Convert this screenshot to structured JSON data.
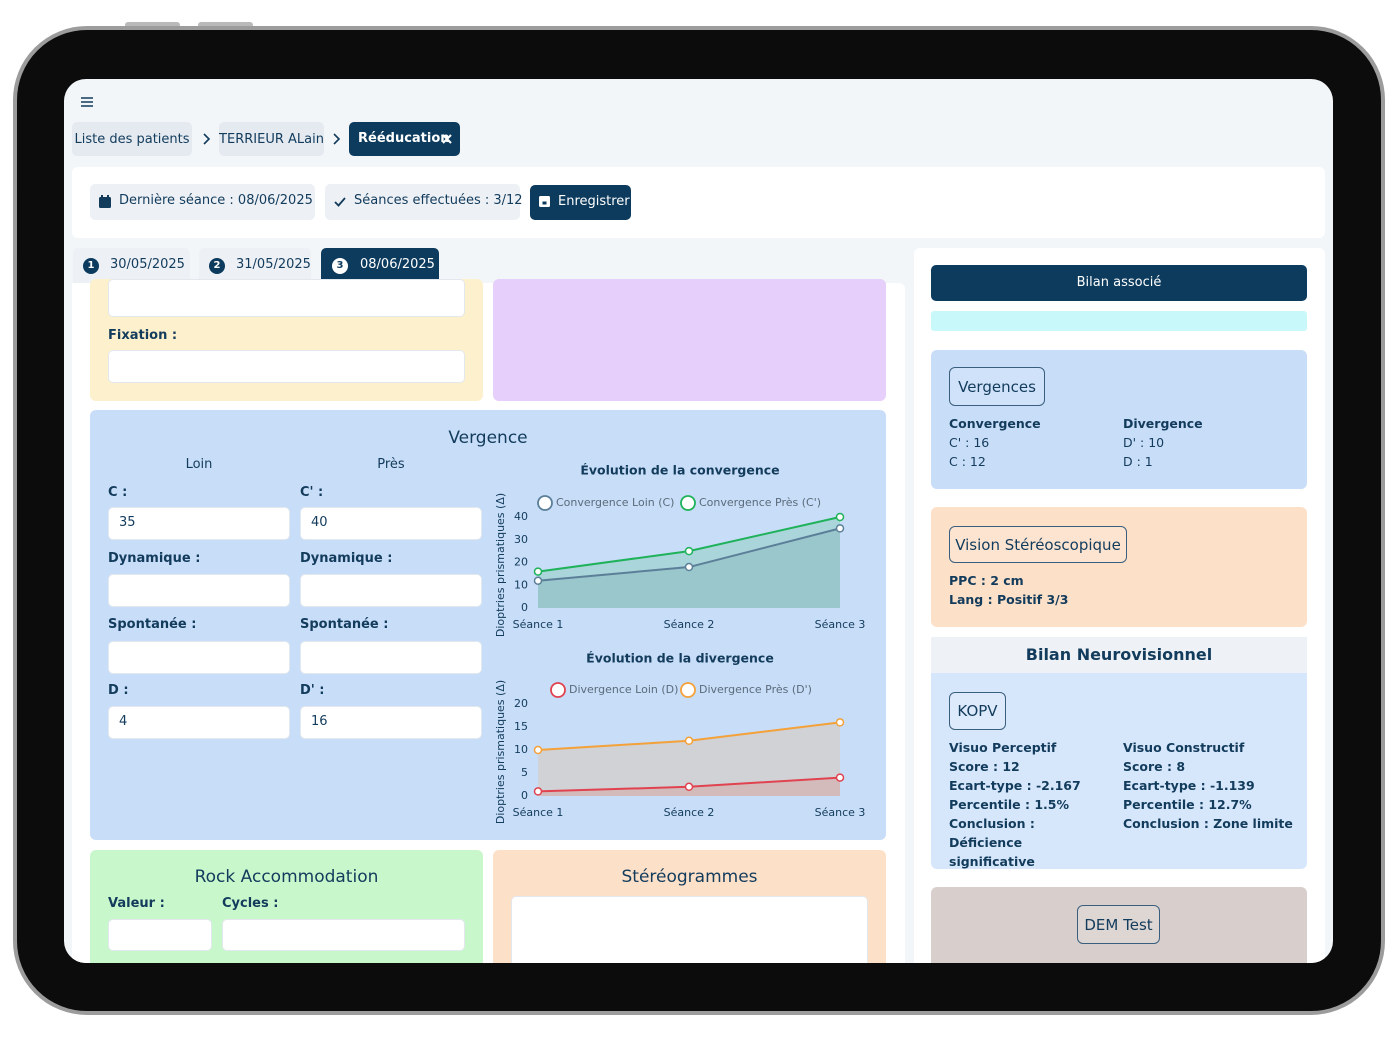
{
  "header": {
    "breadcrumb": [
      "Liste des patients",
      "TERRIEUR ALain",
      "Rééducation"
    ]
  },
  "toolbar": {
    "last_session": "Dernière séance : 08/06/2025",
    "sessions_done": "Séances effectuées : 3/12",
    "save": "Enregistrer"
  },
  "tabs": [
    {
      "number": "1",
      "date": "30/05/2025"
    },
    {
      "number": "2",
      "date": "31/05/2025"
    },
    {
      "number": "3",
      "date": "08/06/2025"
    }
  ],
  "top_section": {
    "fixation_label": "Fixation :"
  },
  "vergence": {
    "title": "Vergence",
    "columns": [
      "Loin",
      "Près"
    ],
    "rows": [
      {
        "labels": [
          "C :",
          "C' :"
        ],
        "values": [
          "35",
          "40"
        ]
      },
      {
        "labels": [
          "Dynamique :",
          "Dynamique :"
        ]
      },
      {
        "labels": [
          "Spontanée :",
          "Spontanée :"
        ]
      },
      {
        "labels": [
          "D :",
          "D' :"
        ],
        "values": [
          "4",
          "16"
        ]
      }
    ]
  },
  "chart_data": [
    {
      "type": "line",
      "title": "Évolution de la convergence",
      "y_label": "Dioptries prismatiques (Δ)",
      "categories": [
        "Séance 1",
        "Séance 2",
        "Séance 3"
      ],
      "series": [
        {
          "name": "Convergence Loin (C)",
          "color": "#5b7f98",
          "values": [
            12,
            18,
            35
          ]
        },
        {
          "name": "Convergence Près (C')",
          "color": "#1fb25a",
          "values": [
            16,
            25,
            40
          ]
        }
      ],
      "ylim": [
        0,
        40
      ],
      "yticks": [
        0,
        10,
        20,
        30,
        40
      ],
      "area": true
    },
    {
      "type": "line",
      "title": "Évolution de la divergence",
      "y_label": "Dioptries prismatiques (Δ)",
      "categories": [
        "Séance 1",
        "Séance 2",
        "Séance 3"
      ],
      "series": [
        {
          "name": "Divergence Loin (D)",
          "color": "#e0434f",
          "values": [
            1,
            2,
            4
          ]
        },
        {
          "name": "Divergence Près (D')",
          "color": "#f4a13a",
          "values": [
            10,
            12,
            16
          ]
        }
      ],
      "ylim": [
        0,
        20
      ],
      "yticks": [
        0,
        5,
        10,
        15,
        20
      ],
      "area": true
    }
  ],
  "rock_accommodation": {
    "title": "Rock Accommodation",
    "labels": [
      "Valeur :",
      "Cycles :"
    ]
  },
  "stereogrammes": {
    "title": "Stéréogrammes"
  },
  "sidebar": {
    "bilan_button": "Bilan associé",
    "vergences": {
      "tag": "Vergences",
      "columns": [
        {
          "heading": "Convergence",
          "lines": [
            "C' : 16",
            "C : 12"
          ]
        },
        {
          "heading": "Divergence",
          "lines": [
            "D' : 10",
            "D : 1"
          ]
        }
      ]
    },
    "vision_stereo": {
      "tag": "Vision Stéréoscopique",
      "lines": [
        "PPC : 2 cm",
        "Lang : Positif 3/3"
      ]
    },
    "neuro": {
      "title": "Bilan Neurovisionnel",
      "tag": "KOPV",
      "columns": [
        {
          "heading": "Visuo Perceptif",
          "lines": [
            "Score : 12",
            "Ecart-type : -2.167",
            "Percentile : 1.5%",
            "Conclusion : Déficience significative"
          ]
        },
        {
          "heading": "Visuo Constructif",
          "lines": [
            "Score : 8",
            "Ecart-type : -1.139",
            "Percentile : 12.7%",
            "Conclusion : Zone limite"
          ]
        }
      ]
    },
    "dem": {
      "tag": "DEM Test"
    }
  }
}
